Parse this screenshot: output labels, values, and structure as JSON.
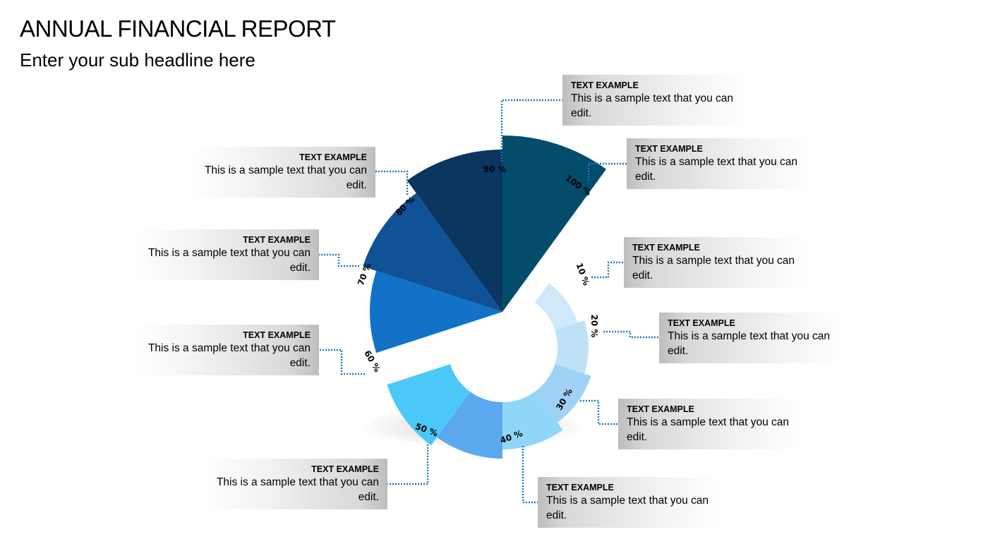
{
  "title": "ANNUAL FINANCIAL REPORT",
  "subtitle": "Enter your sub headline here",
  "chart_data": {
    "type": "pie",
    "segments": [
      {
        "label": "10 %",
        "value": 10,
        "color": "#cfe8fa"
      },
      {
        "label": "20 %",
        "value": 20,
        "color": "#bfe1f8"
      },
      {
        "label": "30 %",
        "value": 30,
        "color": "#9fd1f5"
      },
      {
        "label": "40 %",
        "value": 40,
        "color": "#8fd6f8"
      },
      {
        "label": "50 %",
        "value": 50,
        "color": "#5aa8ee"
      },
      {
        "label": "60 %",
        "value": 60,
        "color": "#4cc8f8"
      },
      {
        "label": "70 %",
        "value": 70,
        "color": "#1272c8"
      },
      {
        "label": "80 %",
        "value": 80,
        "color": "#0f5296"
      },
      {
        "label": "90 %",
        "value": 90,
        "color": "#0a3660"
      },
      {
        "label": "100 %",
        "value": 100,
        "color": "#034c6c"
      }
    ]
  },
  "callouts": [
    {
      "heading": "TEXT EXAMPLE",
      "text": "This is a sample text that you can edit."
    },
    {
      "heading": "TEXT EXAMPLE",
      "text": "This is a sample text that you can edit."
    },
    {
      "heading": "TEXT EXAMPLE",
      "text": "This is a sample text that you can edit."
    },
    {
      "heading": "TEXT EXAMPLE",
      "text": "This is a sample text that you can edit."
    },
    {
      "heading": "TEXT EXAMPLE",
      "text": "This is a sample text that you can edit."
    },
    {
      "heading": "TEXT EXAMPLE",
      "text": "This is a sample text that you can edit."
    },
    {
      "heading": "TEXT EXAMPLE",
      "text": "This is a sample text that you can edit."
    },
    {
      "heading": "TEXT EXAMPLE",
      "text": "This is a sample text that you can edit."
    },
    {
      "heading": "TEXT EXAMPLE",
      "text": "This is a sample text that you can edit."
    },
    {
      "heading": "TEXT EXAMPLE",
      "text": "This is a sample text that you can edit."
    }
  ],
  "connector_color": "#1f77c0"
}
